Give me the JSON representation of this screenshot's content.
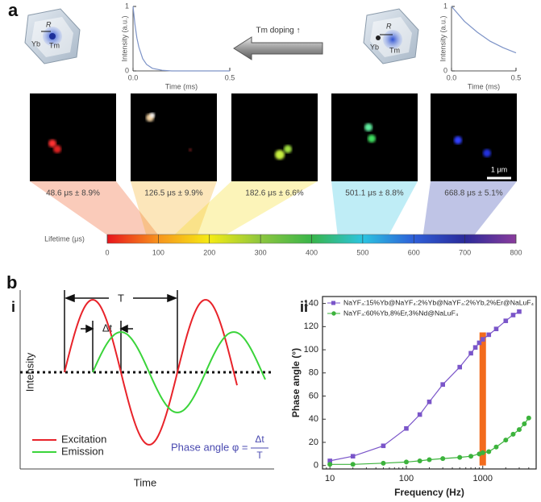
{
  "panel_labels": {
    "a": "a",
    "b": "b",
    "b_i": "i",
    "b_ii": "ii"
  },
  "nanocrystals": [
    {
      "R": "R",
      "Yb": "Yb",
      "Tm": "Tm"
    },
    {
      "R": "R",
      "Yb": "Yb",
      "Tm": "Tm"
    }
  ],
  "arrow_label": "Tm doping ↑",
  "images": [
    {
      "label": "48.6 μs ± 8.9%",
      "lifetime": 48.6,
      "error": 8.9
    },
    {
      "label": "126.5 μs ± 9.9%",
      "lifetime": 126.5,
      "error": 9.9
    },
    {
      "label": "182.6 μs ± 6.6%",
      "lifetime": 182.6,
      "error": 6.6
    },
    {
      "label": "501.1 μs ± 8.8%",
      "lifetime": 501.1,
      "error": 8.8
    },
    {
      "label": "668.8 μs ± 5.1%",
      "lifetime": 668.8,
      "error": 5.1
    }
  ],
  "scale_bar": "1 μm",
  "colorbar": {
    "label": "Lifetime (μs)",
    "lim": [
      0,
      800
    ],
    "ticks": [
      0,
      100,
      200,
      300,
      400,
      500,
      600,
      700,
      800
    ],
    "colors": [
      "#e8141b",
      "#f7941d",
      "#f5eb14",
      "#8dc63f",
      "#39b54a",
      "#2bc4e0",
      "#2e5fd8",
      "#2a2a9a",
      "#8a3c9c"
    ]
  },
  "schematic": {
    "period": "T",
    "delay": "Δt",
    "ylabel": "Intensity",
    "xlabel": "Time",
    "excitation": "Excitation",
    "emission": "Emission",
    "phase_label": "Phase angle φ =",
    "numerator": "Δt",
    "denominator": "T",
    "excitation_color": "#e8232a",
    "emission_color": "#3ad43a"
  },
  "chart_data": [
    {
      "type": "line",
      "xlabel": "Time (ms)",
      "ylabel": "Intensity (a.u.)",
      "color": "#7d93c7",
      "x": [
        0,
        0.01,
        0.02,
        0.03,
        0.05,
        0.07,
        0.1,
        0.15,
        0.2,
        0.3,
        0.4,
        0.5
      ],
      "values": [
        1,
        0.72,
        0.51,
        0.37,
        0.19,
        0.1,
        0.04,
        0.01,
        0,
        0,
        0,
        0
      ],
      "xlim": [
        0,
        0.5
      ],
      "ylim": [
        0,
        1
      ],
      "xticks": [
        {
          "value": 0,
          "label": "0.0"
        },
        0.5
      ],
      "yticks": [
        0,
        1
      ],
      "frame": "axes"
    },
    {
      "type": "line",
      "xlabel": "Time (ms)",
      "ylabel": "Intensity (a.u.)",
      "color": "#7d93c7",
      "x": [
        0,
        0.1,
        0.2,
        0.3,
        0.4,
        0.5
      ],
      "values": [
        1,
        0.77,
        0.6,
        0.46,
        0.36,
        0.28
      ],
      "xlim": [
        0,
        0.5
      ],
      "ylim": [
        0,
        1
      ],
      "xticks": [
        {
          "value": 0,
          "label": "0.0"
        },
        0.5
      ],
      "yticks": [
        0,
        1
      ],
      "frame": "axes"
    },
    {
      "type": "line",
      "xlabel": "Frequency (Hz)",
      "ylabel": "Phase angle (°)",
      "xscale": "log",
      "frame": "box",
      "legend": "upper left",
      "xlim": [
        8,
        5000
      ],
      "ylim": [
        -3,
        146
      ],
      "xticks": [
        10,
        100,
        1000
      ],
      "yticks": [
        0,
        20,
        40,
        60,
        80,
        100,
        120,
        140
      ],
      "highlight": {
        "x": 1000,
        "value": 115,
        "color": "#f26b1d"
      },
      "series": [
        {
          "name": "NaYF₄:15%Yb@NaYF₄:2%Yb@NaYF₄:2%Yb,2%Er@NaLuF₄",
          "color": "#7a55c9",
          "marker": "square",
          "x": [
            10,
            20,
            50,
            100,
            150,
            200,
            300,
            500,
            700,
            800,
            900,
            1000,
            1200,
            1500,
            2000,
            2500,
            3000
          ],
          "values": [
            4,
            8,
            17,
            32,
            44,
            55,
            70,
            85,
            97,
            102,
            106,
            109,
            113,
            118,
            125,
            130,
            133
          ]
        },
        {
          "name": "NaYF₄:60%Yb,8%Er,3%Nd@NaLuF₄",
          "color": "#3cb33c",
          "marker": "circle",
          "x": [
            10,
            20,
            50,
            100,
            150,
            200,
            300,
            500,
            700,
            900,
            1000,
            1200,
            1500,
            2000,
            2500,
            3000,
            3500,
            4000
          ],
          "values": [
            1,
            1,
            2,
            3,
            4,
            5,
            6,
            7,
            8,
            10,
            11,
            12,
            16,
            22,
            27,
            31,
            36,
            41
          ]
        }
      ]
    }
  ]
}
